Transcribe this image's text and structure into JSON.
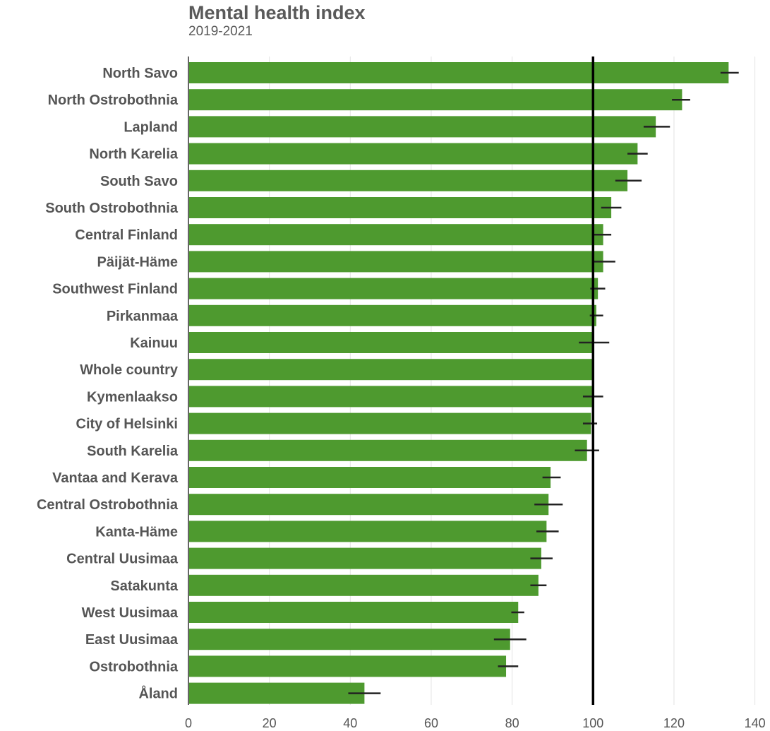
{
  "chart_data": {
    "type": "bar",
    "orientation": "horizontal",
    "title": "Mental health index",
    "subtitle": "2019-2021",
    "xlim": [
      0,
      140
    ],
    "x_ticks": [
      0,
      20,
      40,
      60,
      80,
      100,
      120,
      140
    ],
    "reference_line": 100,
    "grid": true,
    "bar_color": "#4e9a2f",
    "errorbar_color": "#222222",
    "reference_color": "#000000",
    "categories": [
      "North Savo",
      "North Ostrobothnia",
      "Lapland",
      "North Karelia",
      "South Savo",
      "South Ostrobothnia",
      "Central Finland",
      "Päijät-Häme",
      "Southwest Finland",
      "Pirkanmaa",
      "Kainuu",
      "Whole country",
      "Kymenlaakso",
      "City of Helsinki",
      "South Karelia",
      "Vantaa and Kerava",
      "Central Ostrobothnia",
      "Kanta-Häme",
      "Central Uusimaa",
      "Satakunta",
      "West Uusimaa",
      "East Uusimaa",
      "Ostrobothnia",
      "Åland"
    ],
    "values": [
      133.5,
      122,
      115.5,
      111,
      108.5,
      104.5,
      102.5,
      102.5,
      101.2,
      100.8,
      100,
      100,
      99.7,
      99.5,
      98.5,
      89.5,
      89,
      88.5,
      87.2,
      86.5,
      81.5,
      79.5,
      78.5,
      43.5
    ],
    "error_low": [
      131.5,
      119.5,
      112.5,
      108.5,
      105.5,
      102,
      100,
      100,
      99.3,
      99.2,
      96.5,
      100,
      97.5,
      97.5,
      95.5,
      87.5,
      85.5,
      86,
      84.5,
      84.5,
      79.8,
      75.5,
      76.5,
      39.5
    ],
    "error_high": [
      136,
      124,
      119,
      113.5,
      112,
      107,
      104.5,
      105.5,
      103,
      102.5,
      104,
      100,
      102.5,
      101,
      101.5,
      92,
      92.5,
      91.5,
      90,
      88.5,
      83,
      83.5,
      81.5,
      47.5
    ]
  }
}
